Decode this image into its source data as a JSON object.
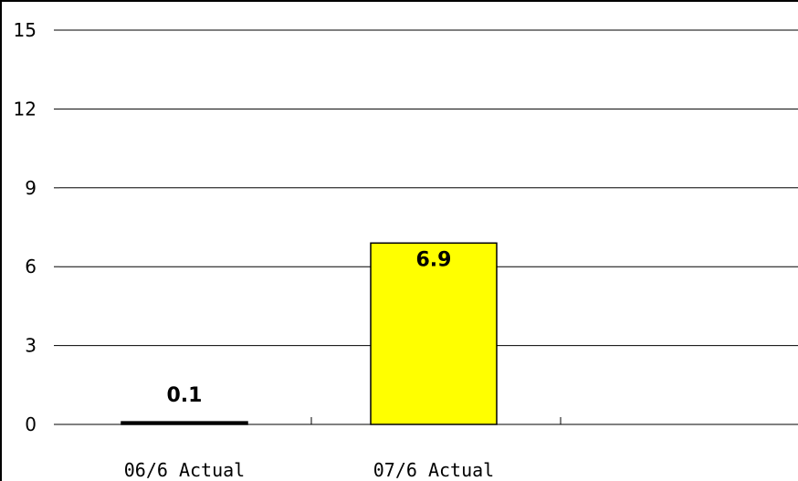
{
  "chart_data": {
    "type": "bar",
    "categories": [
      "06/6 Actual",
      "07/6 Actual"
    ],
    "values": [
      0.1,
      6.9
    ],
    "data_labels": [
      "0.1",
      "6.9"
    ],
    "bar_colors": [
      "#000000",
      "#ffff00"
    ],
    "ylim": [
      0,
      15
    ],
    "y_ticks": [
      0,
      3,
      6,
      9,
      12,
      15
    ],
    "y_tick_labels": [
      "0",
      "3",
      "6",
      "9",
      "12",
      "15"
    ],
    "grid": true,
    "legend": "none",
    "title": "",
    "xlabel": "",
    "ylabel": ""
  }
}
